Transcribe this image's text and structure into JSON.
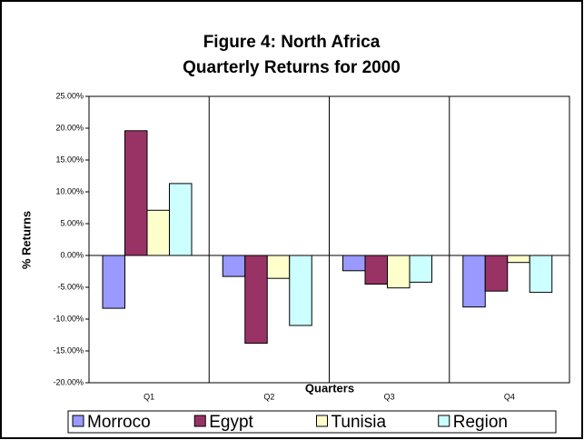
{
  "chart_data": {
    "type": "bar",
    "title": "Figure 4:  North Africa",
    "subtitle": "Quarterly Returns for 2000",
    "y_label": "% Returns",
    "x_label": "Quarters",
    "categories": [
      "Q1",
      "Q2",
      "Q3",
      "Q4"
    ],
    "series": [
      {
        "name": "Morroco",
        "color": "#9999ff",
        "values": [
          -8.3,
          -3.3,
          -2.4,
          -8.1
        ]
      },
      {
        "name": "Egypt",
        "color": "#993366",
        "values": [
          19.6,
          -13.8,
          -4.5,
          -5.6
        ]
      },
      {
        "name": "Tunisia",
        "color": "#ffffcc",
        "values": [
          7.1,
          -3.6,
          -5.1,
          -1.1
        ]
      },
      {
        "name": "Region",
        "color": "#ccffff",
        "values": [
          11.3,
          -11.0,
          -4.2,
          -5.8
        ]
      }
    ],
    "ylim": [
      -20,
      25
    ],
    "yticks": [
      {
        "value": 25,
        "label": "25.00%"
      },
      {
        "value": 20,
        "label": "20.00%"
      },
      {
        "value": 15,
        "label": "15.00%"
      },
      {
        "value": 10,
        "label": "10.00%"
      },
      {
        "value": 5,
        "label": "5.00%"
      },
      {
        "value": 0,
        "label": "0.00%"
      },
      {
        "value": -5,
        "label": "-5.00%"
      },
      {
        "value": -10,
        "label": "-10.00%"
      },
      {
        "value": -15,
        "label": "-15.00%"
      },
      {
        "value": -20,
        "label": "-20.00%"
      }
    ],
    "legend": "bottom"
  }
}
